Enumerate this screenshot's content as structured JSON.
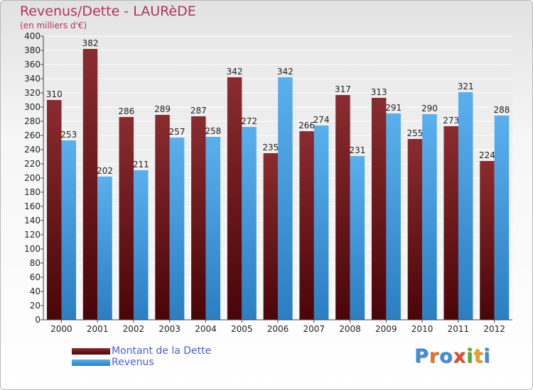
{
  "chart_data": {
    "type": "bar",
    "title": "Revenus/Dette - LAURèDE",
    "subtitle": "(en milliers d'€)",
    "categories": [
      "2000",
      "2001",
      "2002",
      "2003",
      "2004",
      "2005",
      "2006",
      "2007",
      "2008",
      "2009",
      "2010",
      "2011",
      "2012"
    ],
    "series": [
      {
        "name": "Montant de la Dette",
        "color": "#7a1a1e",
        "values": [
          310,
          382,
          286,
          289,
          287,
          342,
          235,
          266,
          317,
          313,
          255,
          273,
          224
        ]
      },
      {
        "name": "Revenus",
        "color": "#3d9ee4",
        "values": [
          253,
          202,
          211,
          257,
          258,
          272,
          342,
          274,
          231,
          291,
          290,
          321,
          288
        ]
      }
    ],
    "ylim": [
      0,
      400
    ],
    "ytick_step": 20,
    "grid": true,
    "legend_position": "bottom-left"
  },
  "logo": {
    "text": "Proxiti",
    "colors": [
      "#3d8ed8",
      "#e8742a",
      "#3d8ed8",
      "#e04a2a",
      "#5aaa3a",
      "#e8a02a",
      "#3d8ed8"
    ]
  }
}
